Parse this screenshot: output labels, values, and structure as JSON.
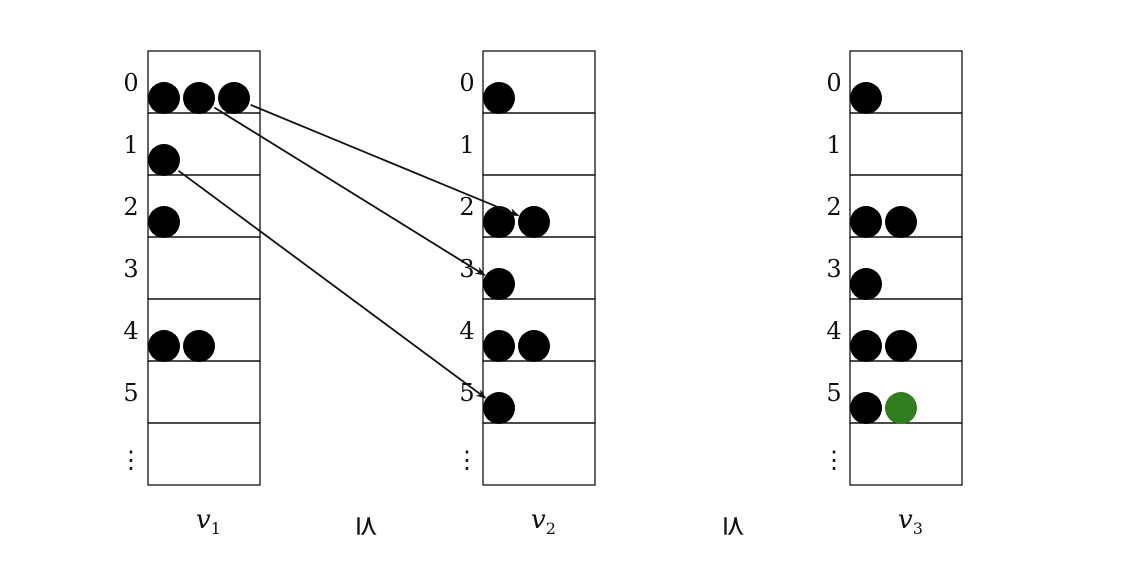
{
  "colors": {
    "token": "#000000",
    "highlight_token": "#2e7d1f",
    "line": "#111111",
    "background": "#ffffff"
  },
  "rows": [
    "0",
    "1",
    "2",
    "3",
    "4",
    "5",
    "⋮"
  ],
  "columns": [
    {
      "label": "v",
      "subscript": "1",
      "counts": [
        3,
        1,
        1,
        0,
        2,
        0
      ],
      "highlight": []
    },
    {
      "label": "v",
      "subscript": "2",
      "counts": [
        1,
        0,
        2,
        1,
        2,
        1
      ],
      "highlight": []
    },
    {
      "label": "v",
      "subscript": "3",
      "counts": [
        1,
        0,
        2,
        1,
        2,
        2
      ],
      "highlight": [
        {
          "row": 5,
          "index": 1
        }
      ]
    }
  ],
  "relations": [
    "⪯",
    "⪯"
  ],
  "arrows": [
    {
      "from": {
        "column": 0,
        "row": 0,
        "index": 1
      },
      "to": {
        "column": 1,
        "row": 3,
        "index": 0
      }
    },
    {
      "from": {
        "column": 0,
        "row": 0,
        "index": 2
      },
      "to": {
        "column": 1,
        "row": 2,
        "index": 1
      }
    },
    {
      "from": {
        "column": 0,
        "row": 1,
        "index": 0
      },
      "to": {
        "column": 1,
        "row": 5,
        "index": 0
      }
    }
  ]
}
